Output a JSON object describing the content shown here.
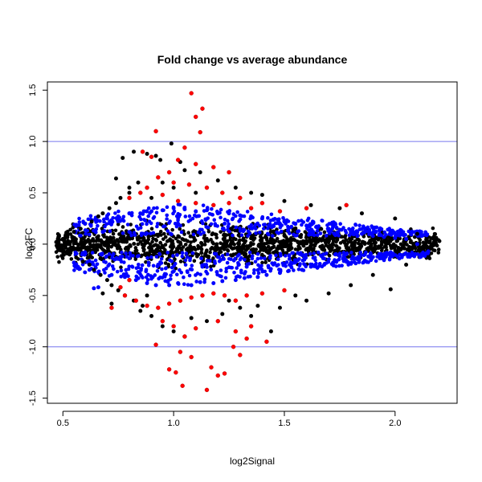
{
  "chart_data": {
    "type": "scatter",
    "title": "Fold change vs average abundance",
    "xlabel": "log2Signal",
    "ylabel": "log2FC",
    "xlim": [
      0.43,
      2.28
    ],
    "ylim": [
      -1.55,
      1.58
    ],
    "x_ticks": [
      0.5,
      1.0,
      1.5,
      2.0
    ],
    "x_tick_labels": [
      "0.5",
      "1.0",
      "1.5",
      "2.0"
    ],
    "y_ticks": [
      -1.5,
      -1.0,
      -0.5,
      0.0,
      0.5,
      1.0,
      1.5
    ],
    "y_tick_labels": [
      "-1.5",
      "-1.0",
      "-0.5",
      "0.0",
      "0.5",
      "1.0",
      "1.5"
    ],
    "hlines": [
      1.0,
      -1.0
    ],
    "grid": false,
    "legend": "none",
    "colors": {
      "black": "#000000",
      "blue": "#0000ff",
      "red": "#ff0000",
      "hline": "#7777ee"
    },
    "series": [
      {
        "color": "black",
        "points": [
          [
            0.47,
            0.02
          ],
          [
            0.48,
            -0.03
          ],
          [
            0.5,
            0.05
          ],
          [
            0.5,
            -0.06
          ],
          [
            0.52,
            0.08
          ],
          [
            0.53,
            -0.1
          ],
          [
            0.55,
            0.12
          ],
          [
            0.56,
            -0.13
          ],
          [
            0.58,
            0.15
          ],
          [
            0.59,
            -0.17
          ],
          [
            0.6,
            0.2
          ],
          [
            0.62,
            -0.2
          ],
          [
            0.63,
            0.22
          ],
          [
            0.64,
            -0.25
          ],
          [
            0.66,
            0.27
          ],
          [
            0.67,
            -0.3
          ],
          [
            0.68,
            0.3
          ],
          [
            0.7,
            -0.35
          ],
          [
            0.71,
            0.35
          ],
          [
            0.72,
            -0.4
          ],
          [
            0.74,
            0.4
          ],
          [
            0.75,
            -0.45
          ],
          [
            0.76,
            0.45
          ],
          [
            0.78,
            -0.5
          ],
          [
            0.8,
            0.55
          ],
          [
            0.82,
            -0.55
          ],
          [
            0.84,
            0.6
          ],
          [
            0.86,
            -0.6
          ],
          [
            0.74,
            0.64
          ],
          [
            0.77,
            0.84
          ],
          [
            0.82,
            0.9
          ],
          [
            0.88,
            0.88
          ],
          [
            0.92,
            0.86
          ],
          [
            0.99,
            0.98
          ],
          [
            0.94,
            0.82
          ],
          [
            1.03,
            0.8
          ],
          [
            1.05,
            0.72
          ],
          [
            1.12,
            0.7
          ],
          [
            1.2,
            0.62
          ],
          [
            1.28,
            0.55
          ],
          [
            0.9,
            -0.7
          ],
          [
            0.95,
            -0.8
          ],
          [
            1.0,
            -0.85
          ],
          [
            1.05,
            -0.9
          ],
          [
            1.08,
            -0.72
          ],
          [
            1.15,
            -0.75
          ],
          [
            1.22,
            -0.68
          ],
          [
            1.3,
            -0.62
          ],
          [
            1.38,
            -0.6
          ],
          [
            1.44,
            -0.85
          ],
          [
            0.72,
            -0.58
          ],
          [
            0.68,
            -0.48
          ],
          [
            0.85,
            -0.65
          ],
          [
            1.6,
            -0.55
          ],
          [
            1.7,
            -0.48
          ],
          [
            1.8,
            -0.4
          ],
          [
            1.98,
            -0.44
          ],
          [
            1.9,
            -0.3
          ],
          [
            2.05,
            -0.2
          ],
          [
            2.1,
            0.1
          ],
          [
            2.2,
            0.03
          ],
          [
            2.15,
            -0.05
          ],
          [
            2.18,
            0.06
          ],
          [
            2.0,
            0.25
          ],
          [
            1.85,
            0.3
          ],
          [
            1.75,
            0.35
          ],
          [
            1.62,
            0.38
          ],
          [
            1.5,
            0.42
          ],
          [
            1.4,
            0.48
          ],
          [
            1.35,
            0.5
          ],
          [
            0.95,
            0.6
          ],
          [
            1.0,
            0.55
          ],
          [
            1.1,
            0.5
          ],
          [
            0.9,
            0.45
          ],
          [
            0.88,
            -0.5
          ],
          [
            1.25,
            -0.55
          ],
          [
            1.35,
            -0.7
          ],
          [
            1.48,
            -0.62
          ],
          [
            1.55,
            -0.5
          ],
          [
            0.8,
            0.5
          ]
        ]
      },
      {
        "color": "blue",
        "points": [
          [
            0.55,
            -0.18
          ],
          [
            0.6,
            0.2
          ],
          [
            0.62,
            -0.25
          ],
          [
            0.65,
            0.22
          ],
          [
            0.66,
            -0.42
          ],
          [
            0.64,
            -0.43
          ],
          [
            0.7,
            0.25
          ],
          [
            0.72,
            -0.3
          ],
          [
            0.75,
            0.27
          ],
          [
            0.78,
            -0.32
          ],
          [
            0.8,
            0.3
          ],
          [
            0.83,
            -0.35
          ],
          [
            0.85,
            0.3
          ],
          [
            0.88,
            -0.38
          ],
          [
            0.9,
            0.32
          ],
          [
            0.92,
            -0.4
          ],
          [
            0.95,
            0.33
          ],
          [
            0.98,
            -0.4
          ],
          [
            1.0,
            0.35
          ],
          [
            1.02,
            -0.38
          ],
          [
            1.05,
            0.34
          ],
          [
            1.08,
            -0.4
          ],
          [
            1.1,
            0.32
          ],
          [
            1.12,
            -0.37
          ],
          [
            1.15,
            0.33
          ],
          [
            1.18,
            -0.38
          ],
          [
            1.2,
            0.3
          ],
          [
            1.22,
            -0.36
          ],
          [
            1.25,
            0.3
          ],
          [
            1.28,
            -0.35
          ],
          [
            1.3,
            0.28
          ],
          [
            1.32,
            -0.33
          ],
          [
            1.35,
            0.27
          ],
          [
            1.38,
            -0.32
          ],
          [
            1.4,
            0.25
          ],
          [
            1.42,
            -0.3
          ],
          [
            1.45,
            0.24
          ],
          [
            1.48,
            -0.28
          ],
          [
            1.5,
            0.22
          ],
          [
            1.52,
            -0.26
          ],
          [
            1.55,
            0.2
          ],
          [
            1.58,
            -0.25
          ],
          [
            1.6,
            0.18
          ],
          [
            1.62,
            -0.22
          ],
          [
            1.65,
            0.16
          ],
          [
            1.68,
            -0.2
          ],
          [
            1.7,
            0.15
          ],
          [
            1.72,
            -0.18
          ],
          [
            1.75,
            0.14
          ],
          [
            1.78,
            -0.16
          ],
          [
            1.8,
            0.12
          ],
          [
            1.82,
            -0.14
          ],
          [
            1.85,
            0.1
          ],
          [
            1.88,
            -0.12
          ],
          [
            1.9,
            0.08
          ],
          [
            1.93,
            -0.1
          ],
          [
            1.95,
            0.07
          ],
          [
            1.98,
            -0.08
          ],
          [
            2.0,
            0.06
          ],
          [
            2.05,
            0.05
          ],
          [
            2.1,
            0.0
          ],
          [
            2.15,
            -0.07
          ],
          [
            2.12,
            0.08
          ],
          [
            1.72,
            0.17
          ],
          [
            1.62,
            0.14
          ],
          [
            1.48,
            0.2
          ],
          [
            0.6,
            -0.08
          ],
          [
            0.68,
            0.12
          ],
          [
            0.76,
            -0.15
          ],
          [
            0.84,
            0.15
          ],
          [
            0.93,
            -0.2
          ],
          [
            1.03,
            0.18
          ],
          [
            1.13,
            -0.22
          ],
          [
            1.23,
            0.2
          ],
          [
            1.33,
            -0.22
          ],
          [
            1.43,
            0.18
          ],
          [
            1.53,
            -0.18
          ],
          [
            1.63,
            0.12
          ],
          [
            1.73,
            -0.1
          ],
          [
            1.83,
            0.08
          ]
        ]
      },
      {
        "color": "red",
        "points": [
          [
            1.08,
            1.47
          ],
          [
            1.13,
            1.32
          ],
          [
            1.1,
            1.24
          ],
          [
            1.12,
            1.09
          ],
          [
            0.92,
            1.1
          ],
          [
            1.05,
            0.94
          ],
          [
            0.86,
            0.9
          ],
          [
            0.9,
            0.85
          ],
          [
            1.02,
            0.82
          ],
          [
            1.1,
            0.78
          ],
          [
            1.18,
            0.75
          ],
          [
            1.25,
            0.7
          ],
          [
            0.98,
            0.7
          ],
          [
            0.93,
            0.65
          ],
          [
            1.0,
            0.6
          ],
          [
            1.07,
            0.58
          ],
          [
            1.15,
            0.55
          ],
          [
            1.22,
            0.5
          ],
          [
            1.3,
            0.45
          ],
          [
            1.4,
            0.4
          ],
          [
            0.88,
            0.55
          ],
          [
            0.85,
            0.5
          ],
          [
            0.8,
            0.45
          ],
          [
            0.95,
            0.48
          ],
          [
            1.02,
            0.42
          ],
          [
            1.1,
            0.4
          ],
          [
            1.18,
            0.38
          ],
          [
            1.25,
            0.4
          ],
          [
            1.35,
            0.35
          ],
          [
            1.48,
            0.32
          ],
          [
            1.6,
            0.35
          ],
          [
            1.78,
            0.38
          ],
          [
            0.78,
            -0.5
          ],
          [
            0.83,
            -0.55
          ],
          [
            0.88,
            -0.6
          ],
          [
            0.93,
            -0.62
          ],
          [
            0.98,
            -0.58
          ],
          [
            1.03,
            -0.55
          ],
          [
            1.08,
            -0.52
          ],
          [
            1.13,
            -0.5
          ],
          [
            1.18,
            -0.48
          ],
          [
            1.23,
            -0.5
          ],
          [
            1.28,
            -0.55
          ],
          [
            1.33,
            -0.5
          ],
          [
            1.4,
            -0.48
          ],
          [
            1.5,
            -0.45
          ],
          [
            0.95,
            -0.75
          ],
          [
            1.0,
            -0.8
          ],
          [
            1.05,
            -0.9
          ],
          [
            1.1,
            -0.82
          ],
          [
            1.2,
            -0.75
          ],
          [
            1.28,
            -0.85
          ],
          [
            1.35,
            -0.8
          ],
          [
            1.42,
            -0.95
          ],
          [
            0.92,
            -0.98
          ],
          [
            1.03,
            -1.05
          ],
          [
            1.08,
            -1.1
          ],
          [
            0.98,
            -1.22
          ],
          [
            1.01,
            -1.25
          ],
          [
            1.04,
            -1.38
          ],
          [
            1.17,
            -1.2
          ],
          [
            1.2,
            -1.28
          ],
          [
            1.23,
            -1.26
          ],
          [
            1.15,
            -1.42
          ],
          [
            1.3,
            -1.08
          ],
          [
            1.27,
            -1.0
          ],
          [
            1.33,
            -0.92
          ],
          [
            0.72,
            -0.62
          ],
          [
            0.76,
            -0.42
          ],
          [
            0.8,
            -0.35
          ]
        ]
      }
    ]
  }
}
